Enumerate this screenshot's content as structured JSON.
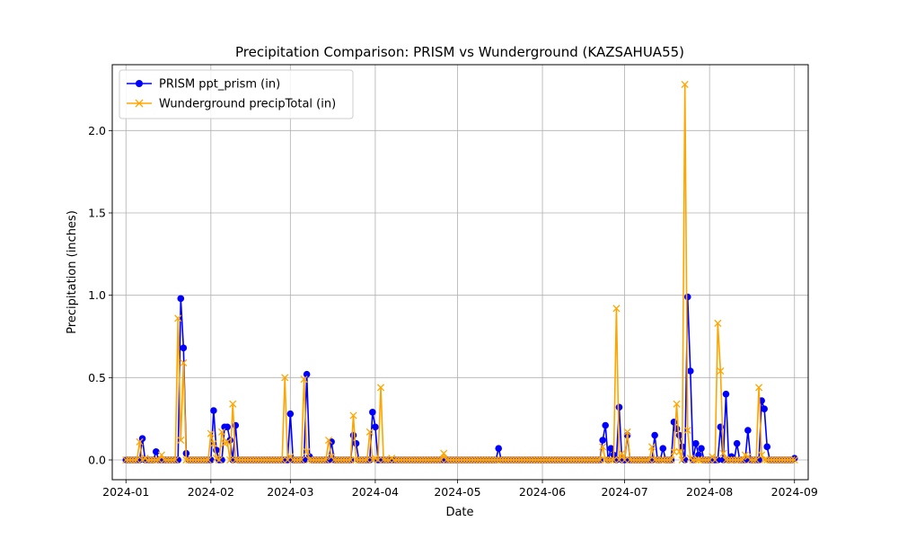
{
  "chart_data": {
    "type": "line",
    "title": "Precipitation Comparison: PRISM vs Wunderground (KAZSAHUA55)",
    "xlabel": "Date",
    "ylabel": "Precipitation (inches)",
    "xlim": [
      "2023-12-27",
      "2024-09-06"
    ],
    "ylim": [
      -0.12,
      2.4
    ],
    "x_ticks": [
      "2024-01-01",
      "2024-02-01",
      "2024-03-01",
      "2024-04-01",
      "2024-05-01",
      "2024-06-01",
      "2024-07-01",
      "2024-08-01",
      "2024-09-01"
    ],
    "x_tick_labels": [
      "2024-01",
      "2024-02",
      "2024-03",
      "2024-04",
      "2024-05",
      "2024-06",
      "2024-07",
      "2024-08",
      "2024-09"
    ],
    "y_ticks": [
      0.0,
      0.5,
      1.0,
      1.5,
      2.0
    ],
    "y_tick_labels": [
      "0.0",
      "0.5",
      "1.0",
      "1.5",
      "2.0"
    ],
    "grid": true,
    "legend_position": "top-left",
    "start_date": "2024-01-01",
    "end_date": "2024-09-01",
    "series": [
      {
        "name": "PRISM ppt_prism (in)",
        "color": "#0000ff",
        "marker": "circle",
        "points": [
          [
            "2024-01-07",
            0.13
          ],
          [
            "2024-01-12",
            0.05
          ],
          [
            "2024-01-21",
            0.98
          ],
          [
            "2024-01-22",
            0.68
          ],
          [
            "2024-01-23",
            0.04
          ],
          [
            "2024-02-02",
            0.3
          ],
          [
            "2024-02-03",
            0.06
          ],
          [
            "2024-02-06",
            0.2
          ],
          [
            "2024-02-07",
            0.2
          ],
          [
            "2024-02-08",
            0.12
          ],
          [
            "2024-02-10",
            0.21
          ],
          [
            "2024-03-01",
            0.28
          ],
          [
            "2024-03-07",
            0.52
          ],
          [
            "2024-03-08",
            0.02
          ],
          [
            "2024-03-16",
            0.11
          ],
          [
            "2024-03-24",
            0.15
          ],
          [
            "2024-03-25",
            0.1
          ],
          [
            "2024-03-31",
            0.29
          ],
          [
            "2024-04-01",
            0.2
          ],
          [
            "2024-05-16",
            0.07
          ],
          [
            "2024-06-23",
            0.12
          ],
          [
            "2024-06-24",
            0.21
          ],
          [
            "2024-06-26",
            0.07
          ],
          [
            "2024-06-27",
            0.03
          ],
          [
            "2024-06-29",
            0.32
          ],
          [
            "2024-07-02",
            0.15
          ],
          [
            "2024-07-12",
            0.15
          ],
          [
            "2024-07-15",
            0.07
          ],
          [
            "2024-07-19",
            0.23
          ],
          [
            "2024-07-20",
            0.19
          ],
          [
            "2024-07-21",
            0.15
          ],
          [
            "2024-07-22",
            0.08
          ],
          [
            "2024-07-24",
            0.99
          ],
          [
            "2024-07-25",
            0.54
          ],
          [
            "2024-07-27",
            0.1
          ],
          [
            "2024-07-28",
            0.03
          ],
          [
            "2024-07-29",
            0.07
          ],
          [
            "2024-08-05",
            0.2
          ],
          [
            "2024-08-07",
            0.4
          ],
          [
            "2024-08-09",
            0.02
          ],
          [
            "2024-08-11",
            0.1
          ],
          [
            "2024-08-15",
            0.18
          ],
          [
            "2024-08-20",
            0.36
          ],
          [
            "2024-08-21",
            0.31
          ],
          [
            "2024-08-22",
            0.08
          ],
          [
            "2024-09-01",
            0.01
          ]
        ]
      },
      {
        "name": "Wunderground precipTotal (in)",
        "color": "#ffa500",
        "marker": "x",
        "points": [
          [
            "2024-01-06",
            0.11
          ],
          [
            "2024-01-08",
            0.01
          ],
          [
            "2024-01-14",
            0.03
          ],
          [
            "2024-01-20",
            0.86
          ],
          [
            "2024-01-21",
            0.12
          ],
          [
            "2024-01-22",
            0.59
          ],
          [
            "2024-02-01",
            0.16
          ],
          [
            "2024-02-02",
            0.1
          ],
          [
            "2024-02-03",
            0.01
          ],
          [
            "2024-02-05",
            0.17
          ],
          [
            "2024-02-06",
            0.1
          ],
          [
            "2024-02-07",
            0.11
          ],
          [
            "2024-02-09",
            0.34
          ],
          [
            "2024-02-28",
            0.5
          ],
          [
            "2024-03-01",
            0.02
          ],
          [
            "2024-03-06",
            0.49
          ],
          [
            "2024-03-07",
            0.05
          ],
          [
            "2024-03-15",
            0.12
          ],
          [
            "2024-03-16",
            0.02
          ],
          [
            "2024-03-24",
            0.27
          ],
          [
            "2024-03-30",
            0.17
          ],
          [
            "2024-04-01",
            0.01
          ],
          [
            "2024-04-03",
            0.44
          ],
          [
            "2024-04-07",
            0.01
          ],
          [
            "2024-04-26",
            0.04
          ],
          [
            "2024-06-23",
            0.08
          ],
          [
            "2024-06-28",
            0.92
          ],
          [
            "2024-06-30",
            0.04
          ],
          [
            "2024-07-02",
            0.17
          ],
          [
            "2024-07-11",
            0.08
          ],
          [
            "2024-07-19",
            0.05
          ],
          [
            "2024-07-20",
            0.34
          ],
          [
            "2024-07-21",
            0.05
          ],
          [
            "2024-07-23",
            2.28
          ],
          [
            "2024-07-24",
            0.18
          ],
          [
            "2024-07-25",
            0.01
          ],
          [
            "2024-08-02",
            0.02
          ],
          [
            "2024-08-04",
            0.83
          ],
          [
            "2024-08-05",
            0.54
          ],
          [
            "2024-08-06",
            0.04
          ],
          [
            "2024-08-14",
            0.03
          ],
          [
            "2024-08-15",
            0.02
          ],
          [
            "2024-08-19",
            0.44
          ],
          [
            "2024-08-20",
            0.03
          ]
        ]
      }
    ]
  }
}
